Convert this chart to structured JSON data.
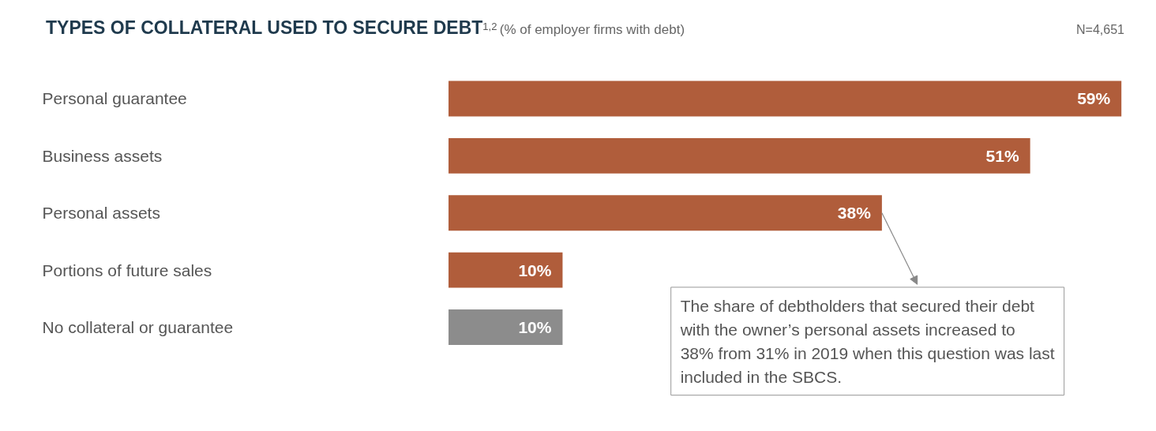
{
  "chart_data": {
    "type": "bar",
    "orientation": "horizontal",
    "title": "TYPES OF COLLATERAL USED TO SECURE DEBT$^{1,2}$",
    "subtitle": "(% of employer firms with debt)",
    "categories": [
      "Personal guarantee",
      "Business assets",
      "Personal assets",
      "Portions of future sales",
      "No collateral or guarantee"
    ],
    "values": [
      59,
      51,
      38,
      10,
      10
    ],
    "colors": [
      "#b05d3b",
      "#b05d3b",
      "#b05d3b",
      "#b05d3b",
      "#8c8c8c"
    ],
    "data_labels": true,
    "value_labels": [
      "59%",
      "51%",
      "38%",
      "10%",
      "10%"
    ],
    "tick_labels": false,
    "grid": false,
    "annotations": [
      "N=4,651",
      {
        "text": "The share of debtholders that secured their debt with the owner’s personal assets increased to 38% from 31% in 2019 when this question was last included in the SBCS.",
        "x": 38,
        "y": "Personal assets"
      }
    ]
  }
}
